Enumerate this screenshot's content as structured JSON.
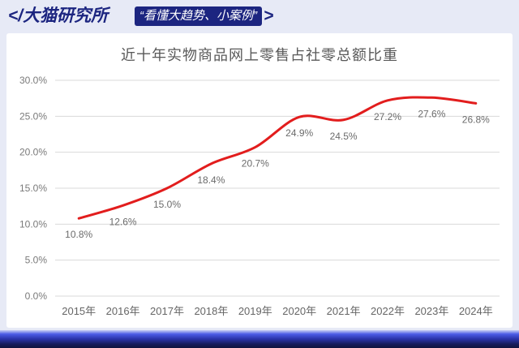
{
  "header": {
    "brand": "</大猫研究所",
    "slogan": "“看懂大趋势、小案例”",
    "suffix": ">"
  },
  "colors": {
    "brand": "#1c2580",
    "line": "#e21d1d",
    "background": "#e7eaf6"
  },
  "chart_data": {
    "type": "line",
    "title": "近十年实物商品网上零售占社零总额比重",
    "categories": [
      "2015年",
      "2016年",
      "2017年",
      "2018年",
      "2019年",
      "2020年",
      "2021年",
      "2022年",
      "2023年",
      "2024年"
    ],
    "series": [
      {
        "values": [
          10.8,
          12.6,
          15.0,
          18.4,
          20.7,
          24.9,
          24.5,
          27.2,
          27.6,
          26.8
        ],
        "data_labels": [
          "10.8%",
          "12.6%",
          "15.0%",
          "18.4%",
          "20.7%",
          "24.9%",
          "24.5%",
          "27.2%",
          "27.6%",
          "26.8%"
        ]
      }
    ],
    "ylim": [
      0,
      30
    ],
    "y_ticks": [
      0,
      5,
      10,
      15,
      20,
      25,
      30
    ],
    "y_tick_labels": [
      "0.0%",
      "5.0%",
      "10.0%",
      "15.0%",
      "20.0%",
      "25.0%",
      "30.0%"
    ],
    "grid": true,
    "legend": "none",
    "smooth": true
  }
}
